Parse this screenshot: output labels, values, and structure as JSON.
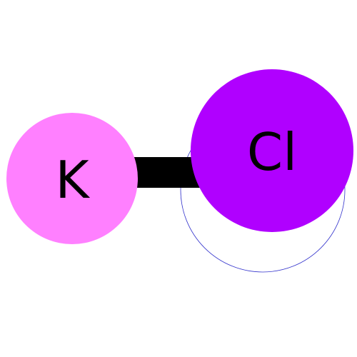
{
  "molecule": {
    "atoms": [
      {
        "symbol": "K",
        "element": "potassium",
        "color": "#ff80ff"
      },
      {
        "symbol": "Cl",
        "element": "chlorine",
        "color": "#b000ff"
      }
    ],
    "bond": {
      "type": "single",
      "color": "#000000"
    },
    "shadow_outline_color": "#3333cc"
  }
}
